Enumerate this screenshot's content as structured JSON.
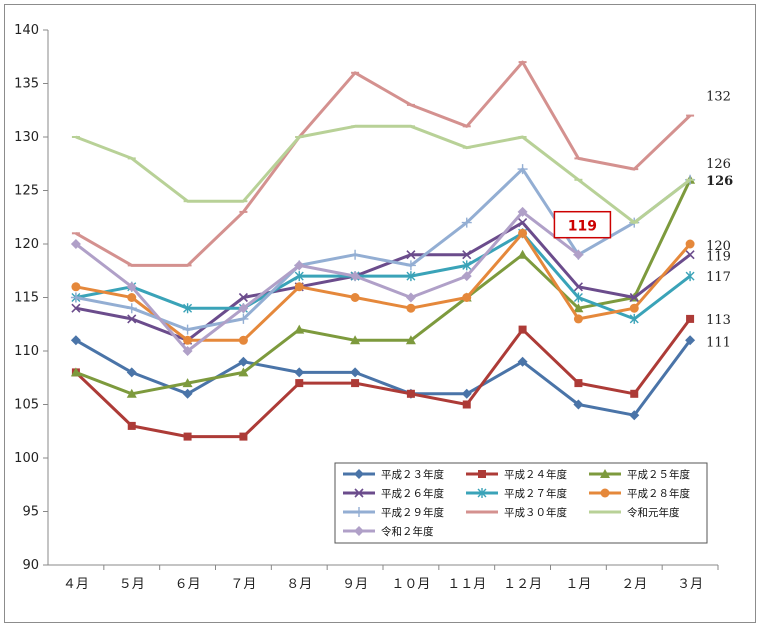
{
  "chart_data": {
    "type": "line",
    "categories": [
      "４月",
      "５月",
      "６月",
      "７月",
      "８月",
      "９月",
      "１０月",
      "１１月",
      "１２月",
      "１月",
      "２月",
      "３月"
    ],
    "ylim": [
      90,
      140
    ],
    "yticks": [
      90,
      95,
      100,
      105,
      110,
      115,
      120,
      125,
      130,
      135,
      140
    ],
    "grid": false,
    "legend_position": "bottom-right",
    "series": [
      {
        "name": "平成２３年度",
        "color": "#4a74a8",
        "marker": "diamond",
        "values": [
          111,
          108,
          106,
          109,
          108,
          108,
          106,
          106,
          109,
          105,
          104,
          111
        ]
      },
      {
        "name": "平成２４年度",
        "color": "#ad3b37",
        "marker": "square",
        "values": [
          108,
          103,
          102,
          102,
          107,
          107,
          106,
          105,
          112,
          107,
          106,
          113
        ]
      },
      {
        "name": "平成２５年度",
        "color": "#7d9a3d",
        "marker": "triangle",
        "values": [
          108,
          106,
          107,
          108,
          112,
          111,
          111,
          115,
          119,
          114,
          115,
          126
        ]
      },
      {
        "name": "平成２６年度",
        "color": "#6b4c8c",
        "marker": "x",
        "values": [
          114,
          113,
          111,
          115,
          116,
          117,
          119,
          119,
          122,
          116,
          115,
          119
        ]
      },
      {
        "name": "平成２７年度",
        "color": "#3aa3b8",
        "marker": "asterisk",
        "values": [
          115,
          116,
          114,
          114,
          117,
          117,
          117,
          118,
          121,
          115,
          113,
          117
        ]
      },
      {
        "name": "平成２８年度",
        "color": "#e5883b",
        "marker": "circle",
        "values": [
          116,
          115,
          111,
          111,
          116,
          115,
          114,
          115,
          121,
          113,
          114,
          120
        ]
      },
      {
        "name": "平成２９年度",
        "color": "#93aed3",
        "marker": "plus",
        "values": [
          115,
          114,
          112,
          113,
          118,
          119,
          118,
          122,
          127,
          119,
          122,
          126
        ]
      },
      {
        "name": "平成３０年度",
        "color": "#d4918f",
        "marker": "dash",
        "values": [
          121,
          118,
          118,
          123,
          130,
          136,
          133,
          131,
          137,
          128,
          127,
          132
        ]
      },
      {
        "name": "令和元年度",
        "color": "#b8d197",
        "marker": "dash",
        "values": [
          130,
          128,
          124,
          124,
          130,
          131,
          131,
          129,
          130,
          126,
          122,
          126
        ]
      },
      {
        "name": "令和２年度",
        "color": "#b0a0c8",
        "marker": "diamond",
        "values": [
          120,
          116,
          110,
          114,
          118,
          117,
          115,
          117,
          123,
          119,
          null,
          null
        ]
      }
    ],
    "end_labels": [
      {
        "text": "132",
        "value": 132
      },
      {
        "text": "126",
        "value": 126
      },
      {
        "text": "126",
        "value": 126
      },
      {
        "text": "120",
        "value": 120
      },
      {
        "text": "119",
        "value": 119
      },
      {
        "text": "117",
        "value": 117
      },
      {
        "text": "113",
        "value": 113
      },
      {
        "text": "111",
        "value": 111
      }
    ],
    "callout": {
      "text": "119",
      "color": "#cc0000"
    }
  }
}
